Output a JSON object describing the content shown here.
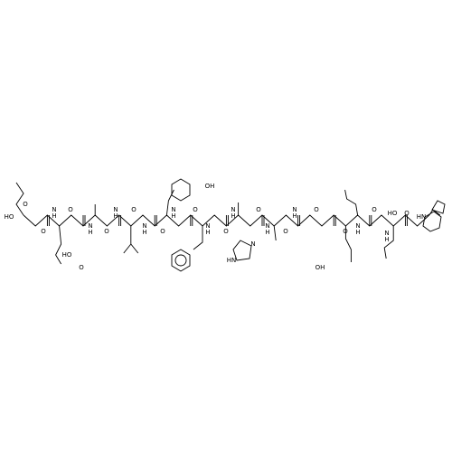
{
  "atoms": [
    {
      "label": "HO"
    },
    {
      "label": "O"
    },
    {
      "label": "O"
    },
    {
      "label": "N"
    },
    {
      "label": "H"
    },
    {
      "label": "O"
    },
    {
      "label": "HO"
    },
    {
      "label": "O"
    },
    {
      "label": "N"
    },
    {
      "label": "H"
    },
    {
      "label": "O"
    },
    {
      "label": "N"
    },
    {
      "label": "H"
    },
    {
      "label": "O"
    },
    {
      "label": "N"
    },
    {
      "label": "H"
    },
    {
      "label": "OH"
    },
    {
      "label": "O"
    },
    {
      "label": "N"
    },
    {
      "label": "H"
    },
    {
      "label": "O"
    },
    {
      "label": "N"
    },
    {
      "label": "H"
    },
    {
      "label": "O"
    },
    {
      "label": "N"
    },
    {
      "label": "H"
    },
    {
      "label": "HN"
    },
    {
      "label": "N"
    },
    {
      "label": "O"
    },
    {
      "label": "N"
    },
    {
      "label": "H"
    },
    {
      "label": "O"
    },
    {
      "label": "N"
    },
    {
      "label": "H"
    },
    {
      "label": "O"
    },
    {
      "label": "OH"
    },
    {
      "label": "O"
    },
    {
      "label": "N"
    },
    {
      "label": "H"
    },
    {
      "label": "O"
    },
    {
      "label": "N"
    },
    {
      "label": "H"
    },
    {
      "label": "HO"
    },
    {
      "label": "O"
    },
    {
      "label": "HN"
    }
  ]
}
